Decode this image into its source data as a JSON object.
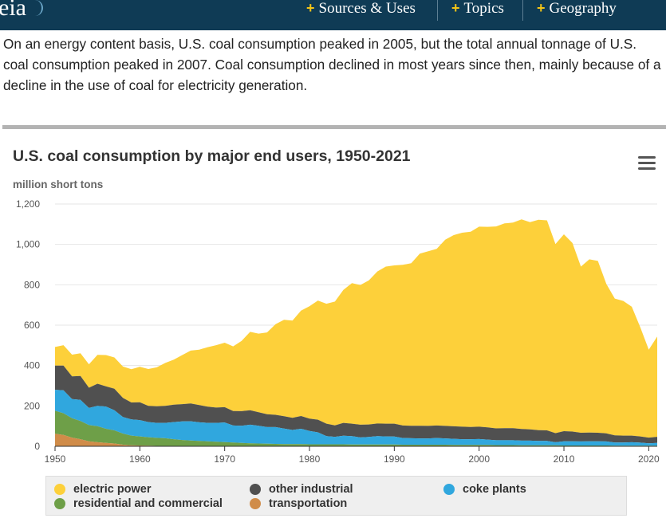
{
  "header": {
    "logo_text": "eia",
    "nav": [
      {
        "label": "Sources & Uses"
      },
      {
        "label": "Topics"
      },
      {
        "label": "Geography"
      }
    ],
    "background_color": "#0f3b55",
    "accent_color": "#f2c417"
  },
  "intro_text": "On an energy content basis, U.S. coal consumption peaked in 2005, but the total annual tonnage of U.S. coal consumption peaked in 2007. Coal consumption declined in most years since then, mainly because of a decline in the use of coal for electricity generation.",
  "chart_data": {
    "type": "area",
    "stacked": true,
    "title": "U.S. coal consumption by major end users, 1950-2021",
    "ylabel": "million short tons",
    "ylim": [
      0,
      1200
    ],
    "y_ticks": [
      "0",
      "200",
      "400",
      "600",
      "800",
      "1,000",
      "1,200"
    ],
    "x_ticks": [
      "1950",
      "1960",
      "1970",
      "1980",
      "1990",
      "2000",
      "2010",
      "2020"
    ],
    "xlim": [
      1950,
      2021
    ],
    "grid": "horizontal",
    "legend_position": "bottom",
    "x": [
      1950,
      1951,
      1952,
      1953,
      1954,
      1955,
      1956,
      1957,
      1958,
      1959,
      1960,
      1961,
      1962,
      1963,
      1964,
      1965,
      1966,
      1967,
      1968,
      1969,
      1970,
      1971,
      1972,
      1973,
      1974,
      1975,
      1976,
      1977,
      1978,
      1979,
      1980,
      1981,
      1982,
      1983,
      1984,
      1985,
      1986,
      1987,
      1988,
      1989,
      1990,
      1991,
      1992,
      1993,
      1994,
      1995,
      1996,
      1997,
      1998,
      1999,
      2000,
      2001,
      2002,
      2003,
      2004,
      2005,
      2006,
      2007,
      2008,
      2009,
      2010,
      2011,
      2012,
      2013,
      2014,
      2015,
      2016,
      2017,
      2018,
      2019,
      2020,
      2021
    ],
    "series": [
      {
        "name": "transportation",
        "color": "#d08c49",
        "values": [
          62,
          56,
          43,
          35,
          25,
          20,
          17,
          14,
          8,
          5,
          4,
          3,
          2,
          2,
          1,
          1,
          1,
          1,
          1,
          1,
          1,
          1,
          1,
          1,
          1,
          1,
          1,
          1,
          1,
          1,
          1,
          1,
          1,
          1,
          1,
          1,
          1,
          1,
          1,
          1,
          1,
          1,
          1,
          1,
          1,
          1,
          1,
          1,
          1,
          1,
          1,
          1,
          1,
          1,
          1,
          1,
          1,
          1,
          1,
          1,
          1,
          1,
          1,
          1,
          1,
          1,
          1,
          1,
          1,
          1,
          1,
          1
        ]
      },
      {
        "name": "residential and commercial",
        "color": "#6e9f48",
        "values": [
          114,
          108,
          96,
          90,
          80,
          80,
          70,
          65,
          55,
          48,
          45,
          42,
          40,
          38,
          34,
          30,
          28,
          26,
          24,
          22,
          20,
          18,
          16,
          14,
          13,
          12,
          11,
          10,
          10,
          10,
          9,
          9,
          9,
          9,
          9,
          8,
          8,
          8,
          8,
          8,
          8,
          7,
          7,
          7,
          7,
          7,
          7,
          6,
          6,
          6,
          6,
          6,
          5,
          5,
          5,
          4,
          4,
          4,
          4,
          4,
          3,
          3,
          3,
          3,
          3,
          3,
          2,
          2,
          2,
          2,
          2,
          2
        ]
      },
      {
        "name": "coke plants",
        "color": "#30a7de",
        "values": [
          104,
          113,
          95,
          105,
          85,
          100,
          110,
          100,
          82,
          80,
          81,
          75,
          74,
          76,
          85,
          92,
          95,
          92,
          91,
          93,
          97,
          84,
          85,
          92,
          88,
          82,
          83,
          77,
          70,
          76,
          66,
          59,
          40,
          37,
          42,
          41,
          35,
          37,
          41,
          40,
          39,
          33,
          32,
          31,
          31,
          33,
          31,
          30,
          28,
          28,
          29,
          26,
          24,
          24,
          24,
          23,
          23,
          22,
          22,
          15,
          21,
          21,
          20,
          21,
          21,
          20,
          16,
          16,
          17,
          15,
          12,
          14
        ]
      },
      {
        "name": "other industrial",
        "color": "#505050",
        "values": [
          120,
          123,
          112,
          118,
          100,
          110,
          100,
          106,
          95,
          84,
          88,
          80,
          82,
          84,
          86,
          86,
          88,
          85,
          80,
          76,
          76,
          72,
          72,
          72,
          67,
          64,
          61,
          61,
          60,
          63,
          61,
          63,
          62,
          57,
          64,
          62,
          63,
          62,
          63,
          63,
          64,
          62,
          62,
          63,
          62,
          62,
          62,
          62,
          62,
          61,
          61,
          61,
          59,
          60,
          60,
          58,
          56,
          53,
          52,
          45,
          50,
          48,
          43,
          43,
          42,
          40,
          35,
          34,
          33,
          31,
          28,
          30
        ]
      },
      {
        "name": "electric power",
        "color": "#fdd03a",
        "values": [
          92,
          101,
          108,
          113,
          116,
          143,
          155,
          155,
          155,
          165,
          176,
          183,
          193,
          213,
          223,
          243,
          262,
          275,
          295,
          309,
          319,
          320,
          348,
          388,
          389,
          405,
          449,
          478,
          482,
          522,
          557,
          590,
          594,
          613,
          659,
          696,
          692,
          714,
          753,
          778,
          784,
          796,
          805,
          852,
          865,
          875,
          922,
          947,
          961,
          967,
          991,
          993,
          1000,
          1014,
          1018,
          1038,
          1026,
          1042,
          1040,
          937,
          975,
          934,
          823,
          858,
          851,
          740,
          678,
          667,
          638,
          541,
          436,
          497
        ]
      }
    ]
  }
}
